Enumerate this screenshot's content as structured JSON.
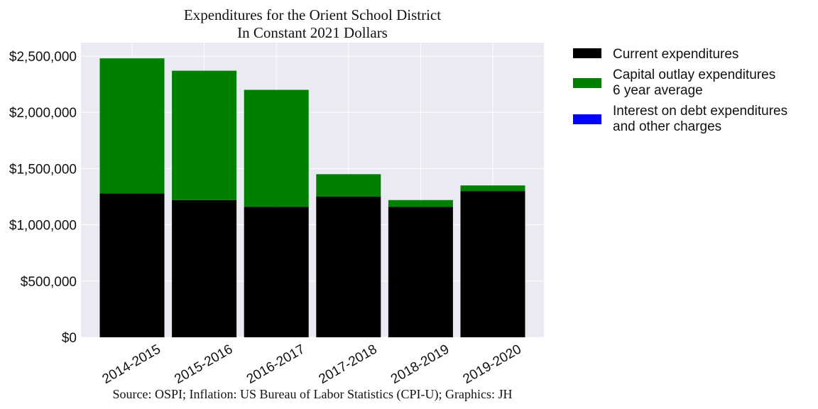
{
  "chart_data": {
    "type": "bar",
    "stacked": true,
    "title": "Expenditures for the Orient School District",
    "subtitle": "In Constant 2021 Dollars",
    "xlabel": "",
    "ylabel": "",
    "categories": [
      "2014-2015",
      "2015-2016",
      "2016-2017",
      "2017-2018",
      "2018-2019",
      "2019-2020"
    ],
    "series": [
      {
        "name": "Current expenditures",
        "color": "#000000",
        "values": [
          1280000,
          1220000,
          1160000,
          1250000,
          1160000,
          1300000
        ]
      },
      {
        "name": "Capital outlay expenditures\n6 year average",
        "color": "#008000",
        "values": [
          1200000,
          1150000,
          1040000,
          200000,
          60000,
          50000
        ]
      },
      {
        "name": "Interest on debt expenditures\nand other charges",
        "color": "#0000ff",
        "values": [
          0,
          0,
          0,
          0,
          0,
          0
        ]
      }
    ],
    "ylim": [
      0,
      2500000
    ],
    "yticks": [
      0,
      500000,
      1000000,
      1500000,
      2000000,
      2500000
    ],
    "ytick_labels": [
      "$0",
      "$500,000",
      "$1,000,000",
      "$1,500,000",
      "$2,000,000",
      "$2,500,000"
    ],
    "grid": true,
    "legend_position": "outside-right",
    "source": "Source: OSPI; Inflation: US Bureau of Labor Statistics (CPI-U); Graphics: JH",
    "colors": {
      "plot_background": "#eaeaf2",
      "grid": "#ffffff"
    }
  }
}
